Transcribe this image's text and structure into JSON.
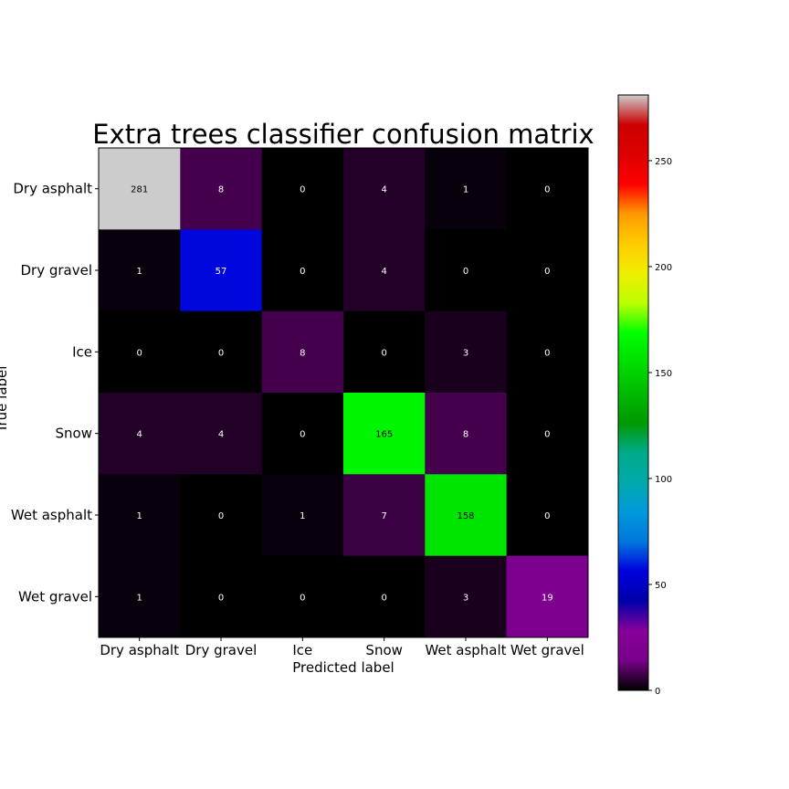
{
  "chart_data": {
    "type": "heatmap",
    "title": "Extra trees classifier confusion matrix",
    "xlabel": "Predicted label",
    "ylabel": "True label",
    "x_categories": [
      "Dry asphalt",
      "Dry gravel",
      "Ice",
      "Snow",
      "Wet asphalt",
      "Wet gravel"
    ],
    "y_categories": [
      "Dry asphalt",
      "Dry gravel",
      "Ice",
      "Snow",
      "Wet asphalt",
      "Wet gravel"
    ],
    "values": [
      [
        281,
        8,
        0,
        4,
        1,
        0
      ],
      [
        1,
        57,
        0,
        4,
        0,
        0
      ],
      [
        0,
        0,
        8,
        0,
        3,
        0
      ],
      [
        4,
        4,
        0,
        165,
        8,
        0
      ],
      [
        1,
        0,
        1,
        7,
        158,
        0
      ],
      [
        1,
        0,
        0,
        0,
        3,
        19
      ]
    ],
    "colormap": "nipy_spectral",
    "colorbar": {
      "range": [
        0,
        281
      ],
      "ticks": [
        "0",
        "50",
        "100",
        "150",
        "200",
        "250"
      ]
    },
    "grid": false
  }
}
